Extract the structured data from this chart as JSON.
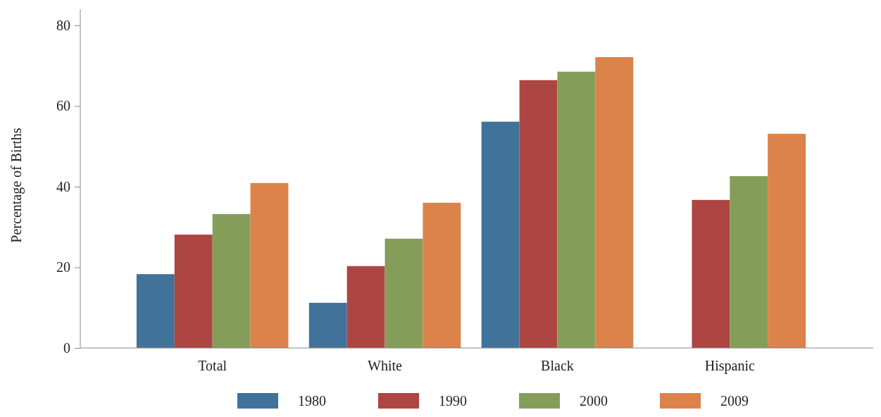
{
  "chart_data": {
    "type": "bar",
    "ylabel": "Percentage of Births",
    "categories": [
      "Total",
      "White",
      "Black",
      "Hispanic"
    ],
    "series": [
      {
        "name": "1980",
        "color": "#41729a",
        "values": [
          18.3,
          11.2,
          56.1,
          null
        ]
      },
      {
        "name": "1990",
        "color": "#ad4542",
        "values": [
          28.1,
          20.3,
          66.4,
          36.7
        ]
      },
      {
        "name": "2000",
        "color": "#849e5a",
        "values": [
          33.2,
          27.1,
          68.5,
          42.6
        ]
      },
      {
        "name": "2009",
        "color": "#dc824b",
        "values": [
          40.9,
          36.0,
          72.1,
          53.1
        ]
      }
    ],
    "ylim": [
      0,
      84
    ],
    "yticks": [
      0,
      20,
      40,
      60,
      80
    ],
    "grid": false,
    "legend": "bottom"
  }
}
